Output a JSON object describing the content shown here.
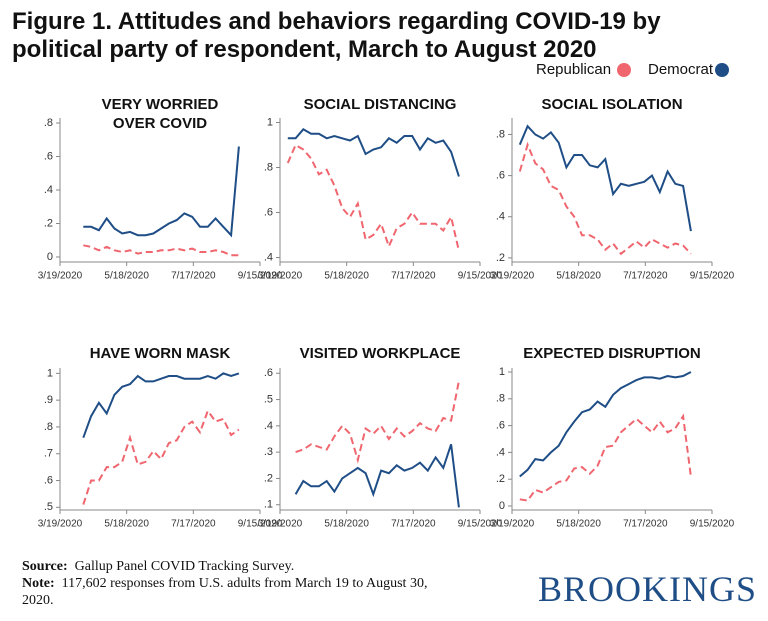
{
  "title": "Figure 1. Attitudes and behaviors regarding COVID-19 by political party of respondent, March to August 2020",
  "source": {
    "label": "Source:",
    "text": "Gallup Panel COVID Tracking Survey."
  },
  "note": {
    "label": "Note:",
    "text": "117,602 responses from U.S. adults from March 19 to August 30, 2020."
  },
  "brand": "BROOKINGS",
  "chart_data": [
    {
      "type": "line",
      "title": "VERY WORRIED OVER COVID",
      "x": [
        "4/9/2020",
        "4/16/2020",
        "4/23/2020",
        "4/30/2020",
        "5/7/2020",
        "5/14/2020",
        "5/21/2020",
        "5/28/2020",
        "6/4/2020",
        "6/11/2020",
        "6/18/2020",
        "6/25/2020",
        "7/2/2020",
        "7/9/2020",
        "7/16/2020",
        "7/23/2020",
        "7/30/2020",
        "8/6/2020",
        "8/13/2020",
        "8/20/2020",
        "8/27/2020"
      ],
      "xlim": [
        "3/19/2020",
        "9/15/2020"
      ],
      "xticks": [
        "3/19/2020",
        "5/18/2020",
        "7/17/2020",
        "9/15/2020"
      ],
      "ylim": [
        -0.03,
        0.83
      ],
      "yticks": [
        0,
        {
          "value": 0.2,
          "label": ".2"
        },
        {
          "value": 0.4,
          "label": ".4"
        },
        {
          "value": 0.6,
          "label": ".6"
        },
        {
          "value": 0.8,
          "label": ".8"
        }
      ],
      "series": [
        {
          "name": "Republican",
          "color": "#f0666f",
          "line_style": "dashed",
          "values": [
            0.07,
            0.06,
            0.04,
            0.06,
            0.04,
            0.03,
            0.04,
            0.02,
            0.03,
            0.03,
            0.04,
            0.04,
            0.05,
            0.04,
            0.05,
            0.03,
            0.03,
            0.04,
            0.03,
            0.01,
            0.01
          ]
        },
        {
          "name": "Democrat",
          "color": "#1f4e87",
          "line_style": "solid",
          "values": [
            0.18,
            0.18,
            0.16,
            0.23,
            0.17,
            0.14,
            0.15,
            0.13,
            0.13,
            0.14,
            0.17,
            0.2,
            0.22,
            0.26,
            0.24,
            0.18,
            0.18,
            0.23,
            0.18,
            0.13,
            0.66
          ]
        }
      ]
    },
    {
      "type": "line",
      "title": "SOCIAL DISTANCING",
      "x": [
        "3/26/2020",
        "4/2/2020",
        "4/9/2020",
        "4/16/2020",
        "4/23/2020",
        "4/30/2020",
        "5/7/2020",
        "5/14/2020",
        "5/21/2020",
        "5/28/2020",
        "6/4/2020",
        "6/11/2020",
        "6/18/2020",
        "6/25/2020",
        "7/2/2020",
        "7/9/2020",
        "7/16/2020",
        "7/23/2020",
        "7/30/2020",
        "8/6/2020",
        "8/13/2020",
        "8/20/2020",
        "8/27/2020"
      ],
      "xlim": [
        "3/19/2020",
        "9/15/2020"
      ],
      "xticks": [
        "3/19/2020",
        "5/18/2020",
        "7/17/2020",
        "9/15/2020"
      ],
      "ylim": [
        0.38,
        1.02
      ],
      "yticks": [
        {
          "value": 0.4,
          "label": ".4"
        },
        {
          "value": 0.6,
          "label": ".6"
        },
        {
          "value": 0.8,
          "label": ".8"
        },
        1
      ],
      "series": [
        {
          "name": "Republican",
          "color": "#f0666f",
          "line_style": "dashed",
          "values": [
            0.82,
            0.9,
            0.88,
            0.84,
            0.77,
            0.79,
            0.72,
            0.62,
            0.58,
            0.64,
            0.48,
            0.5,
            0.55,
            0.45,
            0.53,
            0.55,
            0.6,
            0.55,
            0.55,
            0.55,
            0.52,
            0.58,
            0.43
          ]
        },
        {
          "name": "Democrat",
          "color": "#1f4e87",
          "line_style": "solid",
          "values": [
            0.93,
            0.93,
            0.97,
            0.95,
            0.95,
            0.93,
            0.94,
            0.93,
            0.92,
            0.94,
            0.86,
            0.88,
            0.89,
            0.93,
            0.91,
            0.94,
            0.94,
            0.88,
            0.93,
            0.91,
            0.92,
            0.87,
            0.76
          ]
        }
      ]
    },
    {
      "type": "line",
      "title": "SOCIAL ISOLATION",
      "x": [
        "3/26/2020",
        "4/2/2020",
        "4/9/2020",
        "4/16/2020",
        "4/23/2020",
        "4/30/2020",
        "5/7/2020",
        "5/14/2020",
        "5/21/2020",
        "5/28/2020",
        "6/4/2020",
        "6/11/2020",
        "6/18/2020",
        "6/25/2020",
        "7/2/2020",
        "7/9/2020",
        "7/16/2020",
        "7/23/2020",
        "7/30/2020",
        "8/6/2020",
        "8/13/2020",
        "8/20/2020",
        "8/27/2020"
      ],
      "xlim": [
        "3/19/2020",
        "9/15/2020"
      ],
      "xticks": [
        "3/19/2020",
        "5/18/2020",
        "7/17/2020",
        "9/15/2020"
      ],
      "ylim": [
        0.18,
        0.88
      ],
      "yticks": [
        {
          "value": 0.2,
          "label": ".2"
        },
        {
          "value": 0.4,
          "label": ".4"
        },
        {
          "value": 0.6,
          "label": ".6"
        },
        {
          "value": 0.8,
          "label": ".8"
        }
      ],
      "series": [
        {
          "name": "Republican",
          "color": "#f0666f",
          "line_style": "dashed",
          "values": [
            0.62,
            0.75,
            0.66,
            0.63,
            0.55,
            0.53,
            0.45,
            0.4,
            0.31,
            0.31,
            0.29,
            0.24,
            0.27,
            0.22,
            0.25,
            0.28,
            0.25,
            0.29,
            0.27,
            0.25,
            0.27,
            0.26,
            0.22
          ]
        },
        {
          "name": "Democrat",
          "color": "#1f4e87",
          "line_style": "solid",
          "values": [
            0.75,
            0.84,
            0.8,
            0.78,
            0.81,
            0.76,
            0.64,
            0.7,
            0.7,
            0.65,
            0.64,
            0.68,
            0.51,
            0.56,
            0.55,
            0.56,
            0.57,
            0.6,
            0.52,
            0.62,
            0.56,
            0.55,
            0.33
          ]
        }
      ]
    },
    {
      "type": "line",
      "title": "HAVE WORN MASK",
      "x": [
        "4/9/2020",
        "4/16/2020",
        "4/23/2020",
        "4/30/2020",
        "5/7/2020",
        "5/14/2020",
        "5/21/2020",
        "5/28/2020",
        "6/4/2020",
        "6/11/2020",
        "6/18/2020",
        "6/25/2020",
        "7/2/2020",
        "7/9/2020",
        "7/16/2020",
        "7/23/2020",
        "7/30/2020",
        "8/6/2020",
        "8/13/2020",
        "8/20/2020",
        "8/27/2020"
      ],
      "xlim": [
        "3/19/2020",
        "9/15/2020"
      ],
      "xticks": [
        "3/19/2020",
        "5/18/2020",
        "7/17/2020",
        "9/15/2020"
      ],
      "ylim": [
        0.49,
        1.02
      ],
      "yticks": [
        {
          "value": 0.5,
          "label": ".5"
        },
        {
          "value": 0.6,
          "label": ".6"
        },
        {
          "value": 0.7,
          "label": ".7"
        },
        {
          "value": 0.8,
          "label": ".8"
        },
        {
          "value": 0.9,
          "label": ".9"
        },
        1
      ],
      "series": [
        {
          "name": "Republican",
          "color": "#f0666f",
          "line_style": "dashed",
          "values": [
            0.51,
            0.6,
            0.6,
            0.65,
            0.65,
            0.67,
            0.76,
            0.66,
            0.67,
            0.71,
            0.68,
            0.74,
            0.75,
            0.8,
            0.82,
            0.78,
            0.86,
            0.82,
            0.83,
            0.77,
            0.79
          ]
        },
        {
          "name": "Democrat",
          "color": "#1f4e87",
          "line_style": "solid",
          "values": [
            0.76,
            0.84,
            0.89,
            0.85,
            0.92,
            0.95,
            0.96,
            0.99,
            0.97,
            0.97,
            0.98,
            0.99,
            0.99,
            0.98,
            0.98,
            0.98,
            0.99,
            0.98,
            1.0,
            0.99,
            1.0
          ]
        }
      ]
    },
    {
      "type": "line",
      "title": "VISITED WORKPLACE",
      "x": [
        "4/2/2020",
        "4/9/2020",
        "4/16/2020",
        "4/23/2020",
        "4/30/2020",
        "5/7/2020",
        "5/14/2020",
        "5/21/2020",
        "5/28/2020",
        "6/4/2020",
        "6/11/2020",
        "6/18/2020",
        "6/25/2020",
        "7/2/2020",
        "7/9/2020",
        "7/16/2020",
        "7/23/2020",
        "7/30/2020",
        "8/6/2020",
        "8/13/2020",
        "8/20/2020",
        "8/27/2020"
      ],
      "xlim": [
        "3/19/2020",
        "9/15/2020"
      ],
      "xticks": [
        "3/19/2020",
        "5/18/2020",
        "7/17/2020",
        "9/15/2020"
      ],
      "ylim": [
        0.08,
        0.62
      ],
      "yticks": [
        {
          "value": 0.1,
          "label": ".1"
        },
        {
          "value": 0.2,
          "label": ".2"
        },
        {
          "value": 0.3,
          "label": ".3"
        },
        {
          "value": 0.4,
          "label": ".4"
        },
        {
          "value": 0.5,
          "label": ".5"
        },
        {
          "value": 0.6,
          "label": ".6"
        }
      ],
      "series": [
        {
          "name": "Republican",
          "color": "#f0666f",
          "line_style": "dashed",
          "values": [
            0.3,
            0.31,
            0.33,
            0.32,
            0.31,
            0.36,
            0.4,
            0.37,
            0.27,
            0.39,
            0.37,
            0.4,
            0.35,
            0.39,
            0.36,
            0.38,
            0.41,
            0.39,
            0.38,
            0.43,
            0.42,
            0.57
          ]
        },
        {
          "name": "Democrat",
          "color": "#1f4e87",
          "line_style": "solid",
          "values": [
            0.14,
            0.19,
            0.17,
            0.17,
            0.19,
            0.15,
            0.2,
            0.22,
            0.24,
            0.22,
            0.14,
            0.23,
            0.22,
            0.25,
            0.23,
            0.24,
            0.26,
            0.23,
            0.28,
            0.24,
            0.33,
            0.09
          ]
        }
      ]
    },
    {
      "type": "line",
      "title": "EXPECTED DISRUPTION",
      "x": [
        "3/26/2020",
        "4/2/2020",
        "4/9/2020",
        "4/16/2020",
        "4/23/2020",
        "4/30/2020",
        "5/7/2020",
        "5/14/2020",
        "5/21/2020",
        "5/28/2020",
        "6/4/2020",
        "6/11/2020",
        "6/18/2020",
        "6/25/2020",
        "7/2/2020",
        "7/9/2020",
        "7/16/2020",
        "7/23/2020",
        "7/30/2020",
        "8/6/2020",
        "8/13/2020",
        "8/20/2020",
        "8/27/2020"
      ],
      "xlim": [
        "3/19/2020",
        "9/15/2020"
      ],
      "xticks": [
        "3/19/2020",
        "5/18/2020",
        "7/17/2020",
        "9/15/2020"
      ],
      "ylim": [
        -0.03,
        1.03
      ],
      "yticks": [
        0,
        {
          "value": 0.2,
          "label": ".2"
        },
        {
          "value": 0.4,
          "label": ".4"
        },
        {
          "value": 0.6,
          "label": ".6"
        },
        {
          "value": 0.8,
          "label": ".8"
        },
        1
      ],
      "series": [
        {
          "name": "Republican",
          "color": "#f0666f",
          "line_style": "dashed",
          "values": [
            0.05,
            0.04,
            0.12,
            0.1,
            0.14,
            0.18,
            0.19,
            0.28,
            0.29,
            0.24,
            0.3,
            0.44,
            0.45,
            0.55,
            0.6,
            0.65,
            0.6,
            0.55,
            0.63,
            0.55,
            0.58,
            0.67,
            0.22
          ]
        },
        {
          "name": "Democrat",
          "color": "#1f4e87",
          "line_style": "solid",
          "values": [
            0.22,
            0.27,
            0.35,
            0.34,
            0.4,
            0.45,
            0.55,
            0.63,
            0.7,
            0.72,
            0.78,
            0.74,
            0.83,
            0.88,
            0.91,
            0.94,
            0.96,
            0.96,
            0.95,
            0.97,
            0.96,
            0.97,
            1.0
          ]
        }
      ]
    }
  ]
}
